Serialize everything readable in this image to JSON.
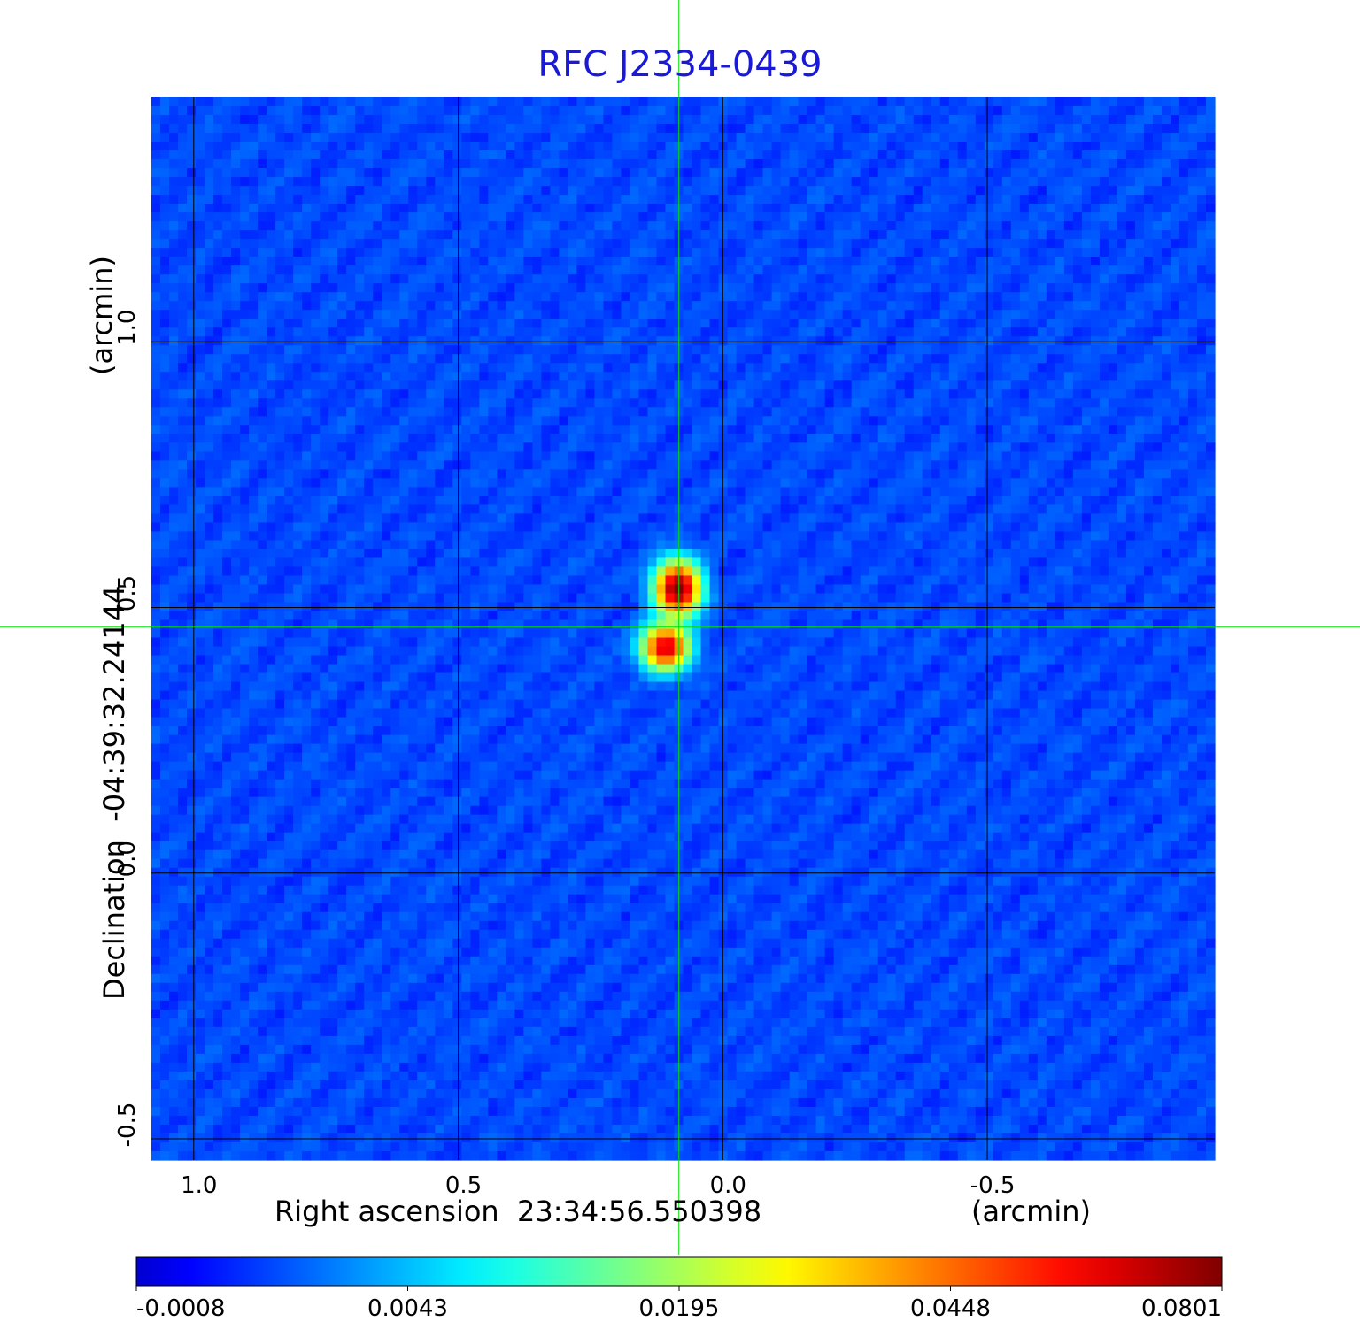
{
  "chart_data": {
    "type": "heatmap",
    "title": "RFC J2334-0439",
    "xlabel": "Right ascension  23:34:56.550398",
    "xunit": "(arcmin)",
    "ylabel": "Declination  -04:39:32.24144",
    "yunit": "(arcmin)",
    "xlim": [
      1.08,
      -0.93
    ],
    "ylim": [
      -0.54,
      1.46
    ],
    "x_ticks": [
      1.0,
      0.5,
      0.0,
      -0.5
    ],
    "x_tick_labels": [
      "1.0",
      "0.5",
      "0.0",
      "-0.5"
    ],
    "y_ticks": [
      -0.5,
      0.0,
      0.5,
      1.0
    ],
    "y_tick_labels": [
      "-0.5",
      "0.0",
      "0.5",
      "1.0"
    ],
    "grid": true,
    "crosshair": {
      "x": 0.083,
      "y": 0.463,
      "color": "#00e000"
    },
    "colormap": "jet",
    "colorbar": {
      "orientation": "horizontal",
      "min": -0.0008,
      "max": 0.0801,
      "tick_labels": [
        "-0.0008",
        "0.0043",
        "0.0195",
        "0.0448",
        "0.0801"
      ]
    },
    "sources": [
      {
        "x": 0.085,
        "y": 0.535,
        "peak": 0.0801,
        "sigma_x": 0.025,
        "sigma_y": 0.03
      },
      {
        "x": 0.108,
        "y": 0.425,
        "peak": 0.066,
        "sigma_x": 0.026,
        "sigma_y": 0.025
      }
    ],
    "background_level": 0.0005
  }
}
